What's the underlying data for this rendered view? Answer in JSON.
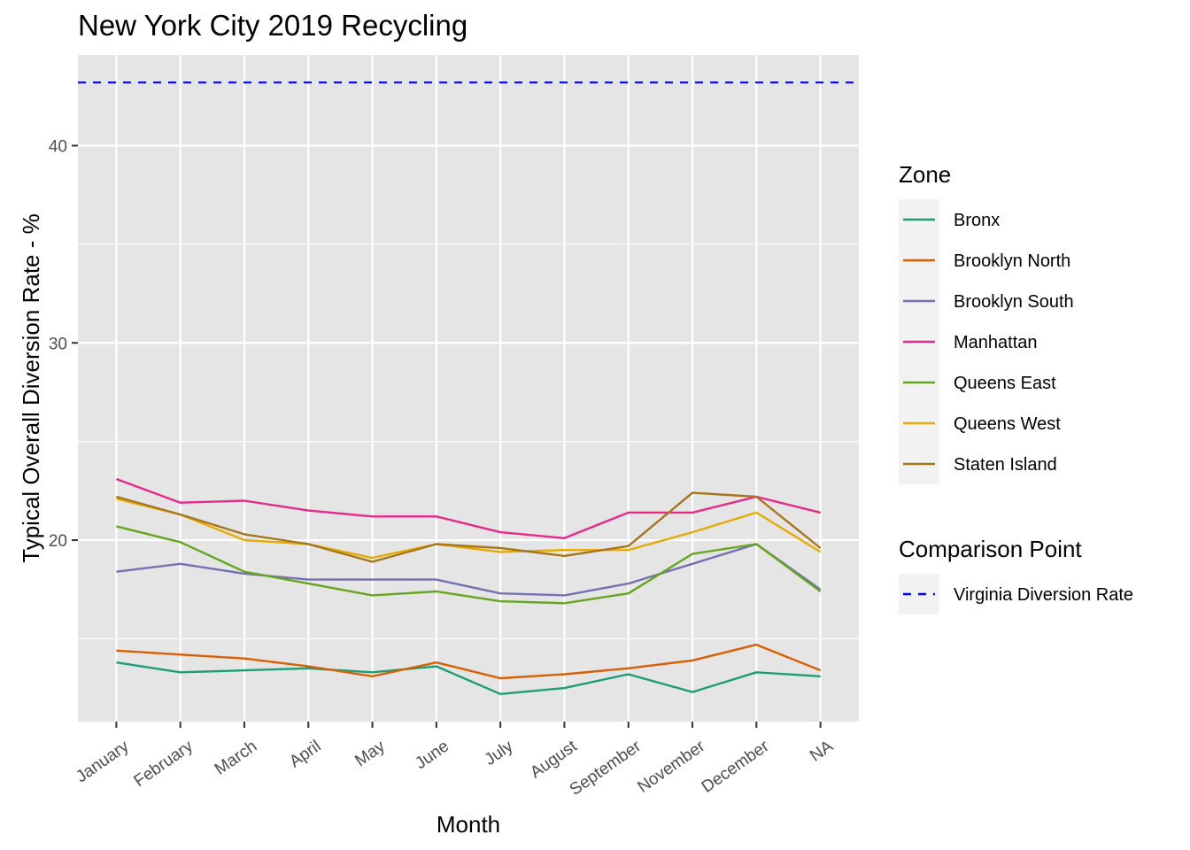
{
  "chart_data": {
    "type": "line",
    "title": "New York City 2019 Recycling",
    "xlabel": "Month",
    "ylabel": "Typical Overall Diversion Rate - %",
    "categories": [
      "January",
      "February",
      "March",
      "April",
      "May",
      "June",
      "July",
      "August",
      "September",
      "November",
      "December",
      "NA"
    ],
    "ylim": [
      10.8,
      44.6
    ],
    "yticks": [
      20,
      30,
      40
    ],
    "y_tick_labels": [
      "20",
      "30",
      "40"
    ],
    "grid": true,
    "legend_position": "right",
    "series": [
      {
        "name": "Bronx",
        "color": "#1B9E77",
        "values": [
          13.8,
          13.3,
          13.4,
          13.5,
          13.3,
          13.6,
          12.2,
          12.5,
          13.2,
          12.3,
          13.3,
          13.1
        ]
      },
      {
        "name": "Brooklyn North",
        "color": "#D95F02",
        "values": [
          14.4,
          14.2,
          14.0,
          13.6,
          13.1,
          13.8,
          13.0,
          13.2,
          13.5,
          13.9,
          14.7,
          13.4
        ]
      },
      {
        "name": "Brooklyn South",
        "color": "#7570B3",
        "values": [
          18.4,
          18.8,
          18.3,
          18.0,
          18.0,
          18.0,
          17.3,
          17.2,
          17.8,
          18.8,
          19.8,
          17.5
        ]
      },
      {
        "name": "Manhattan",
        "color": "#E7298A",
        "values": [
          23.1,
          21.9,
          22.0,
          21.5,
          21.2,
          21.2,
          20.4,
          20.1,
          21.4,
          21.4,
          22.2,
          21.4
        ]
      },
      {
        "name": "Queens East",
        "color": "#66A61E",
        "values": [
          20.7,
          19.9,
          18.4,
          17.8,
          17.2,
          17.4,
          16.9,
          16.8,
          17.3,
          19.3,
          19.8,
          17.4
        ]
      },
      {
        "name": "Queens West",
        "color": "#E6AB02",
        "values": [
          22.1,
          21.3,
          20.0,
          19.8,
          19.1,
          19.8,
          19.4,
          19.5,
          19.5,
          20.4,
          21.4,
          19.4
        ]
      },
      {
        "name": "Staten Island",
        "color": "#A6761D",
        "values": [
          22.2,
          21.3,
          20.3,
          19.8,
          18.9,
          19.8,
          19.6,
          19.2,
          19.7,
          22.4,
          22.2,
          19.6
        ]
      }
    ],
    "legend_zone_title": "Zone",
    "comparison": {
      "legend_title": "Comparison Point",
      "name": "Virginia Diversion Rate",
      "value": 43.2,
      "color": "#0000FF",
      "linetype": "dashed"
    },
    "panel_background": "#E5E5E5",
    "legend_key_background": "#F2F2F2"
  }
}
